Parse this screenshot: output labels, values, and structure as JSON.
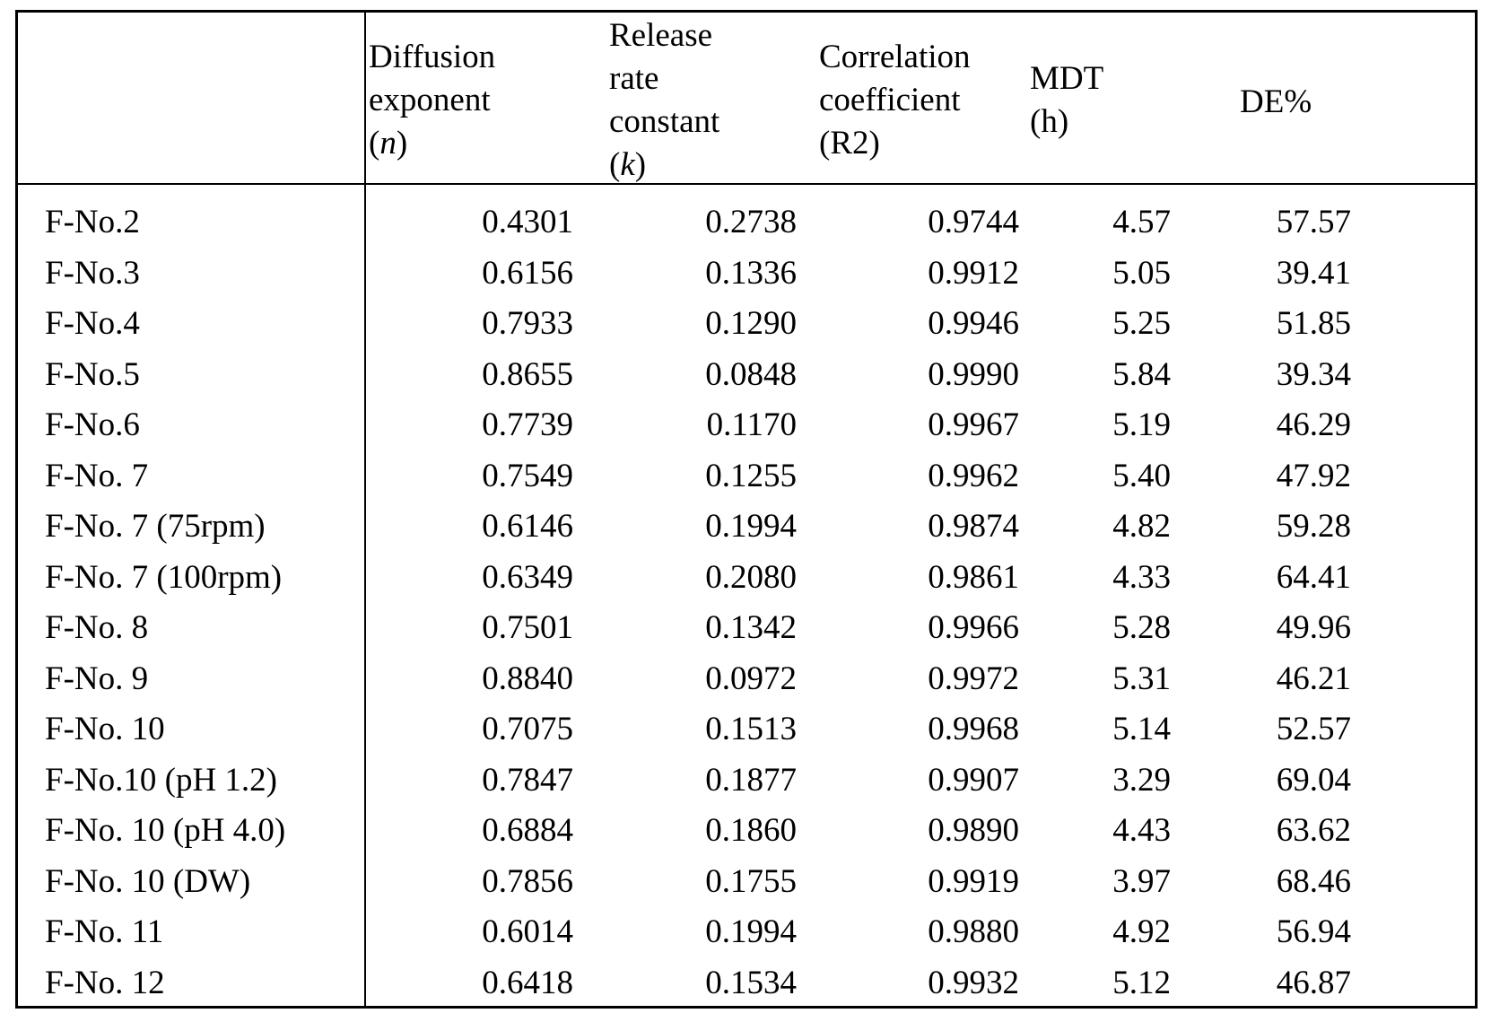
{
  "table": {
    "headers": {
      "blank": "",
      "diffusion": {
        "line1": "Diffusion",
        "line2": "exponent",
        "symbol": "n"
      },
      "release": {
        "line1": "Release",
        "line2": "rate",
        "line3": "constant",
        "symbol": "k"
      },
      "correlation": {
        "line1": "Correlation",
        "line2": "coefficient",
        "line3": "(R2)"
      },
      "mdt": {
        "line1": "MDT",
        "line2": "(h)"
      },
      "de": {
        "line1": "DE%"
      }
    },
    "rows": [
      {
        "name": "F-No.2",
        "n": "0.4301",
        "k": "0.2738",
        "r2": "0.9744",
        "mdt": "4.57",
        "de": "57.57"
      },
      {
        "name": "F-No.3",
        "n": "0.6156",
        "k": "0.1336",
        "r2": "0.9912",
        "mdt": "5.05",
        "de": "39.41"
      },
      {
        "name": "F-No.4",
        "n": "0.7933",
        "k": "0.1290",
        "r2": "0.9946",
        "mdt": "5.25",
        "de": "51.85"
      },
      {
        "name": "F-No.5",
        "n": "0.8655",
        "k": "0.0848",
        "r2": "0.9990",
        "mdt": "5.84",
        "de": "39.34"
      },
      {
        "name": "F-No.6",
        "n": "0.7739",
        "k": "0.1170",
        "r2": "0.9967",
        "mdt": "5.19",
        "de": "46.29"
      },
      {
        "name": "F-No. 7",
        "n": "0.7549",
        "k": "0.1255",
        "r2": "0.9962",
        "mdt": "5.40",
        "de": "47.92"
      },
      {
        "name": "F-No. 7 (75rpm)",
        "n": "0.6146",
        "k": "0.1994",
        "r2": "0.9874",
        "mdt": "4.82",
        "de": "59.28"
      },
      {
        "name": "F-No. 7 (100rpm)",
        "n": "0.6349",
        "k": "0.2080",
        "r2": "0.9861",
        "mdt": "4.33",
        "de": "64.41"
      },
      {
        "name": "F-No. 8",
        "n": "0.7501",
        "k": "0.1342",
        "r2": "0.9966",
        "mdt": "5.28",
        "de": "49.96"
      },
      {
        "name": "F-No. 9",
        "n": "0.8840",
        "k": "0.0972",
        "r2": "0.9972",
        "mdt": "5.31",
        "de": "46.21"
      },
      {
        "name": "F-No. 10",
        "n": "0.7075",
        "k": "0.1513",
        "r2": "0.9968",
        "mdt": "5.14",
        "de": "52.57"
      },
      {
        "name": "F-No.10 (pH 1.2)",
        "n": "0.7847",
        "k": "0.1877",
        "r2": "0.9907",
        "mdt": "3.29",
        "de": "69.04"
      },
      {
        "name": "F-No. 10 (pH 4.0)",
        "n": "0.6884",
        "k": "0.1860",
        "r2": "0.9890",
        "mdt": "4.43",
        "de": "63.62"
      },
      {
        "name": "F-No. 10 (DW)",
        "n": "0.7856",
        "k": "0.1755",
        "r2": "0.9919",
        "mdt": "3.97",
        "de": "68.46"
      },
      {
        "name": "F-No. 11",
        "n": "0.6014",
        "k": "0.1994",
        "r2": "0.9880",
        "mdt": "4.92",
        "de": "56.94"
      },
      {
        "name": "F-No. 12",
        "n": "0.6418",
        "k": "0.1534",
        "r2": "0.9932",
        "mdt": "5.12",
        "de": "46.87"
      }
    ]
  }
}
